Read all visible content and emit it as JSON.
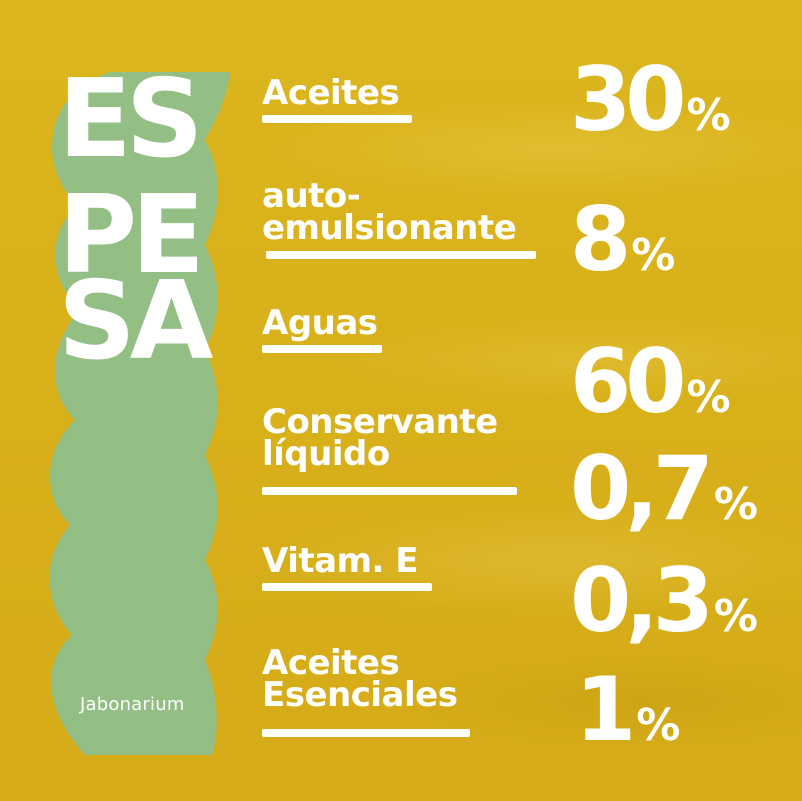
{
  "title_letters": [
    "ES",
    "PE",
    "SA"
  ],
  "brand": "Jabonarium",
  "ingredients": [
    {
      "label": "Aceites",
      "percent": "30",
      "unit": "%"
    },
    {
      "label": "auto-\nemulsionante",
      "percent": "8",
      "unit": "%"
    },
    {
      "label": "Aguas",
      "percent": "60",
      "unit": "%"
    },
    {
      "label": "Conservante\nlíquido",
      "percent": "0,7",
      "unit": "%"
    },
    {
      "label": "Vitam. E",
      "percent": "0,3",
      "unit": "%"
    },
    {
      "label": "Aceites\nEsenciales",
      "percent": "1",
      "unit": "%"
    }
  ],
  "colors": {
    "background": "#d9b21b",
    "wave": "#93bf85",
    "text": "#ffffff"
  }
}
